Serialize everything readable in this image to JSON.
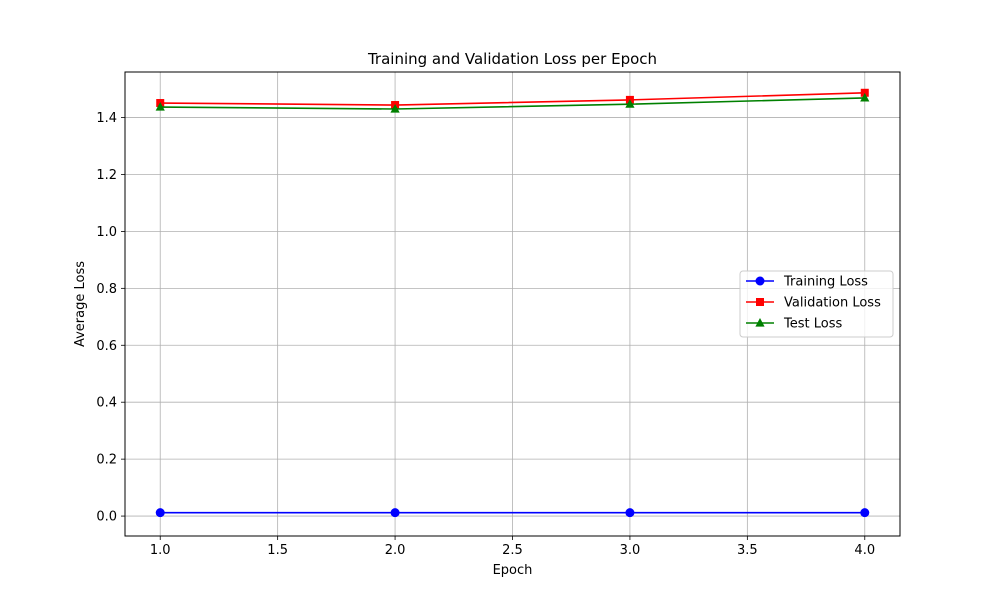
{
  "chart_data": {
    "type": "line",
    "title": "Training and Validation Loss per Epoch",
    "xlabel": "Epoch",
    "ylabel": "Average Loss",
    "xlim": [
      0.85,
      4.15
    ],
    "ylim": [
      -0.07,
      1.56
    ],
    "x": [
      1.0,
      2.0,
      3.0,
      4.0
    ],
    "xticks": [
      1.0,
      1.5,
      2.0,
      2.5,
      3.0,
      3.5,
      4.0
    ],
    "xtick_labels": [
      "1.0",
      "1.5",
      "2.0",
      "2.5",
      "3.0",
      "3.5",
      "4.0"
    ],
    "yticks": [
      0.0,
      0.2,
      0.4,
      0.6,
      0.8,
      1.0,
      1.2,
      1.4
    ],
    "ytick_labels": [
      "0.0",
      "0.2",
      "0.4",
      "0.6",
      "0.8",
      "1.0",
      "1.2",
      "1.4"
    ],
    "grid": true,
    "legend_position": "center-right",
    "series": [
      {
        "name": "Training Loss",
        "values": [
          0.012,
          0.012,
          0.012,
          0.012
        ],
        "color": "#0000ff",
        "marker": "circle"
      },
      {
        "name": "Validation Loss",
        "values": [
          1.451,
          1.444,
          1.462,
          1.487
        ],
        "color": "#ff0000",
        "marker": "square"
      },
      {
        "name": "Test Loss",
        "values": [
          1.437,
          1.43,
          1.447,
          1.469
        ],
        "color": "#008000",
        "marker": "triangle"
      }
    ]
  }
}
